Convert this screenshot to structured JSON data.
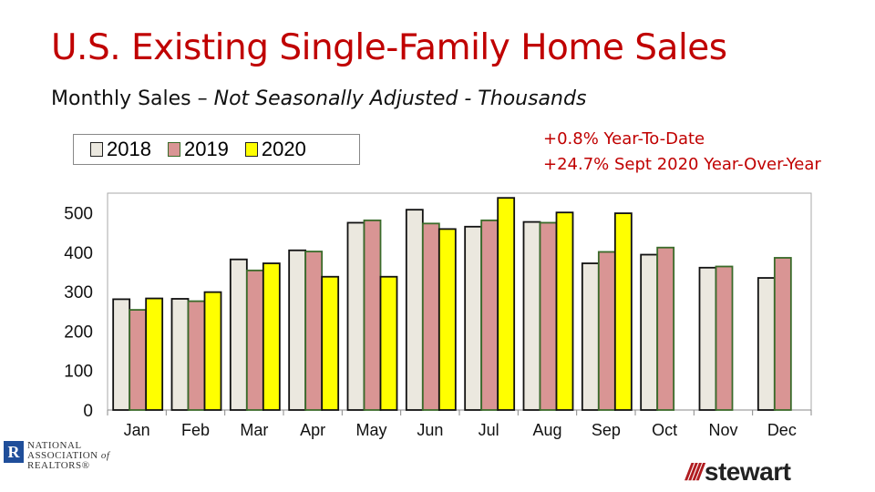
{
  "title": "U.S. Existing Single-Family Home Sales",
  "subtitle_plain": "Monthly Sales – ",
  "subtitle_italic": "Not Seasonally Adjusted - Thousands",
  "notes": [
    "+0.8% Year-To-Date",
    "+24.7% Sept 2020 Year-Over-Year"
  ],
  "logos": {
    "nar": "NATIONAL ASSOCIATION of REALTORS®",
    "nar_mark": "R",
    "stewart": "stewart"
  },
  "chart_data": {
    "type": "bar",
    "categories": [
      "Jan",
      "Feb",
      "Mar",
      "Apr",
      "May",
      "Jun",
      "Jul",
      "Aug",
      "Sep",
      "Oct",
      "Nov",
      "Dec"
    ],
    "series": [
      {
        "name": "2018",
        "color": "#ebe8df",
        "stroke": "#111111",
        "values": [
          281,
          282,
          382,
          405,
          475,
          508,
          465,
          477,
          372,
          394,
          361,
          335
        ]
      },
      {
        "name": "2019",
        "color": "#d99594",
        "stroke": "#3a6b2a",
        "values": [
          254,
          276,
          354,
          402,
          481,
          473,
          481,
          475,
          401,
          412,
          364,
          386
        ]
      },
      {
        "name": "2020",
        "color": "#ffff00",
        "stroke": "#111111",
        "values": [
          283,
          299,
          372,
          338,
          338,
          459,
          538,
          501,
          499,
          null,
          null,
          null
        ]
      }
    ],
    "yticks": [
      0,
      100,
      200,
      300,
      400,
      500
    ],
    "ylim": [
      0,
      550
    ],
    "legend": "top-left",
    "grid": false
  }
}
